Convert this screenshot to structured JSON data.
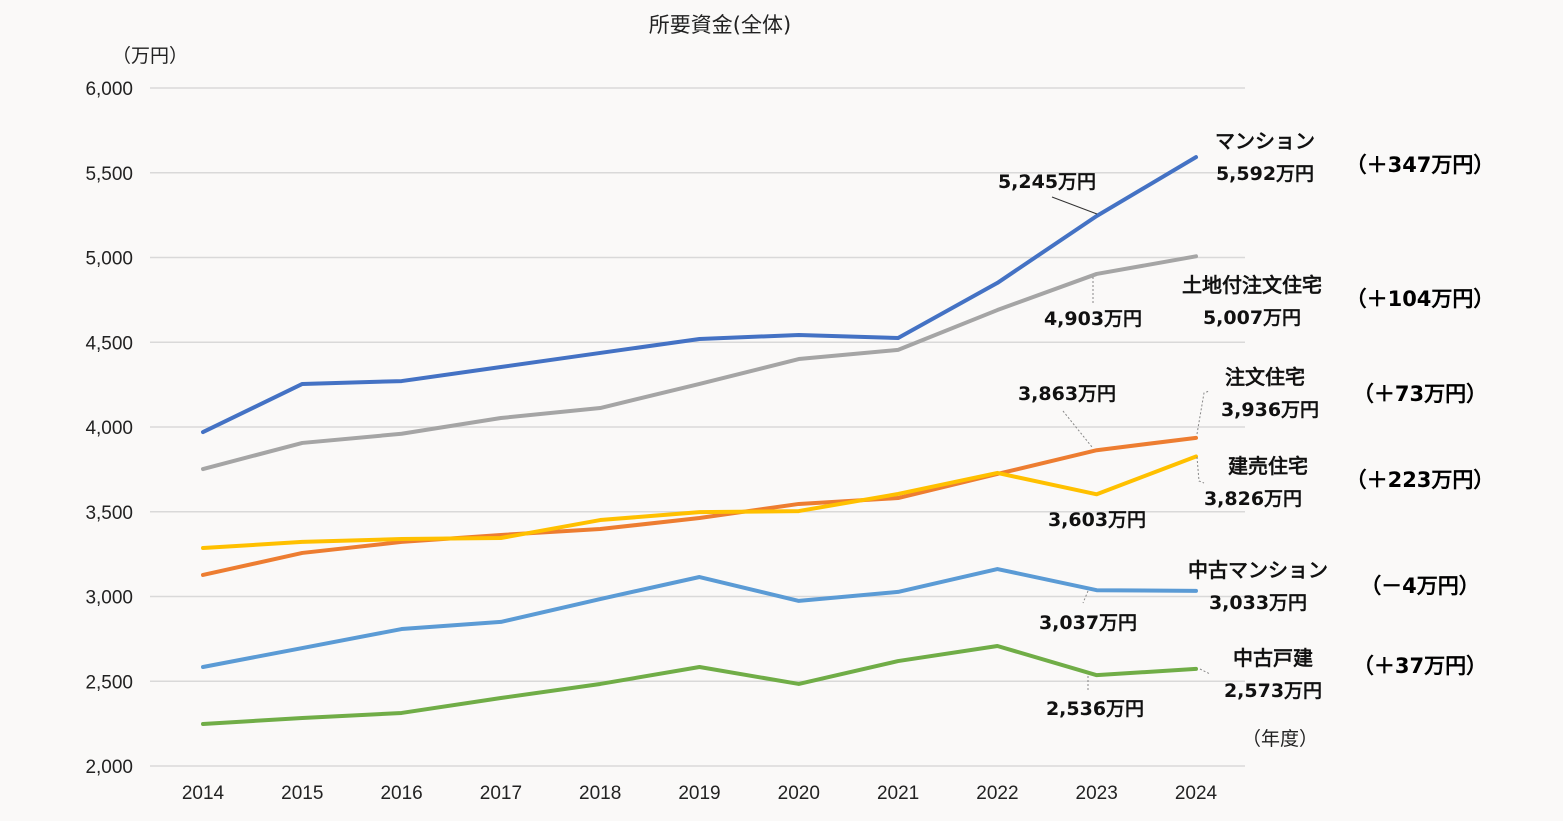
{
  "chart_data": {
    "type": "line",
    "title": "所要資金(全体)",
    "ylabel": "（万円）",
    "xlabel": "（年度）",
    "ylim": [
      2000,
      6000
    ],
    "yticks": [
      2000,
      2500,
      3000,
      3500,
      4000,
      4500,
      5000,
      5500,
      6000
    ],
    "ytick_labels": [
      "2,000",
      "2,500",
      "3,000",
      "3,500",
      "4,000",
      "4,500",
      "5,000",
      "5,500",
      "6,000"
    ],
    "grid": true,
    "x": [
      "2014",
      "2015",
      "2016",
      "2017",
      "2018",
      "2019",
      "2020",
      "2021",
      "2022",
      "2023",
      "2024"
    ],
    "series": [
      {
        "name": "マンション",
        "color": "#4472c4",
        "values": [
          3970,
          4254,
          4271,
          4354,
          4437,
          4519,
          4543,
          4525,
          4850,
          5245,
          5592
        ],
        "label_2023": "5,245万円",
        "label_2024": "5,592万円",
        "change": "（＋347万円）"
      },
      {
        "name": "土地付注文住宅",
        "color": "#a5a5a5",
        "values": [
          3752,
          3906,
          3960,
          4053,
          4112,
          4254,
          4401,
          4455,
          4690,
          4903,
          5007
        ],
        "label_2023": "4,903万円",
        "label_2024": "5,007万円",
        "change": "（＋104万円）"
      },
      {
        "name": "注文住宅",
        "color": "#ed7d31",
        "values": [
          3127,
          3257,
          3322,
          3363,
          3398,
          3463,
          3546,
          3581,
          3723,
          3863,
          3936
        ],
        "label_2023": "3,863万円",
        "label_2024": "3,936万円",
        "change": "（＋73万円）"
      },
      {
        "name": "建売住宅",
        "color": "#ffc000",
        "values": [
          3286,
          3322,
          3339,
          3345,
          3451,
          3498,
          3504,
          3605,
          3729,
          3603,
          3826
        ],
        "label_2023": "3,603万円",
        "label_2024": "3,826万円",
        "change": "（＋223万円）"
      },
      {
        "name": "中古マンション",
        "color": "#5b9bd5",
        "values": [
          2584,
          2696,
          2808,
          2850,
          2985,
          3115,
          2974,
          3027,
          3162,
          3037,
          3033
        ],
        "label_2023": "3,037万円",
        "label_2024": "3,033万円",
        "change": "（－4万円）"
      },
      {
        "name": "中古戸建",
        "color": "#70ad47",
        "values": [
          2248,
          2283,
          2313,
          2401,
          2484,
          2584,
          2484,
          2619,
          2708,
          2536,
          2573
        ],
        "label_2023": "2,536万円",
        "label_2024": "2,573万円",
        "change": "（＋37万円）"
      }
    ]
  }
}
